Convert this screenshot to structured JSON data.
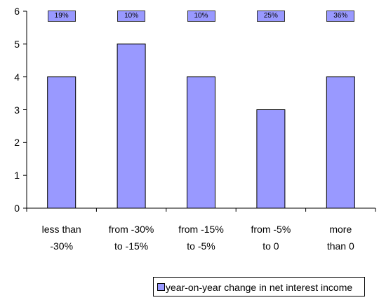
{
  "chart_data": {
    "type": "bar",
    "categories": [
      "less than\n-30%",
      "from -30%\nto -15%",
      "from -15%\nto -5%",
      "from -5%\nto 0",
      "more\nthan 0"
    ],
    "series": [
      {
        "name": "year-on-year change in net interest income",
        "color": "#9999ff",
        "values": [
          4,
          5,
          4,
          3,
          4
        ]
      }
    ],
    "annotations": [
      "19%",
      "10%",
      "10%",
      "25%",
      "36%"
    ],
    "ylim": [
      0,
      6
    ],
    "yticks": [
      0,
      1,
      2,
      3,
      4,
      5,
      6
    ],
    "grid": false
  }
}
